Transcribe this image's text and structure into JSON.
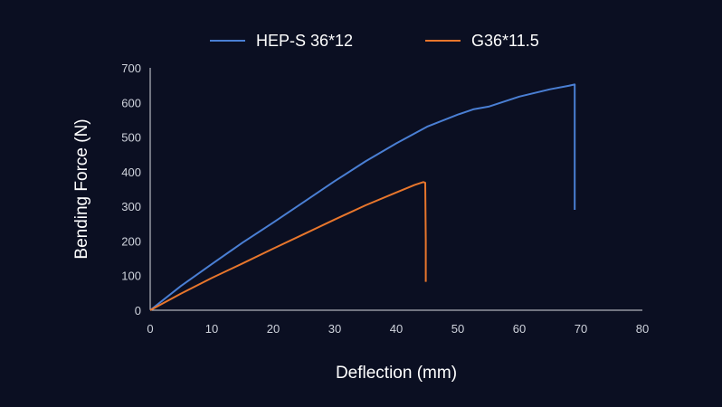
{
  "chart_data": {
    "type": "line",
    "xlabel": "Deflection (mm)",
    "ylabel": "Bending Force (N)",
    "xlim": [
      0,
      80
    ],
    "ylim": [
      0,
      700
    ],
    "xticks": [
      0,
      10,
      20,
      30,
      40,
      50,
      60,
      70,
      80
    ],
    "yticks": [
      0,
      100,
      200,
      300,
      400,
      500,
      600,
      700
    ],
    "grid": false,
    "legend": "top-center",
    "series": [
      {
        "name": "HEP-S 36*12",
        "color": "#4a7fd4",
        "x": [
          0,
          5,
          10,
          15,
          20,
          25,
          30,
          35,
          40,
          45,
          50,
          52.5,
          55,
          60,
          65,
          68,
          69,
          69,
          69
        ],
        "y": [
          0,
          70,
          133,
          195,
          253,
          313,
          373,
          430,
          482,
          530,
          565,
          580,
          588,
          617,
          638,
          648,
          652,
          400,
          290
        ]
      },
      {
        "name": "G36*11.5",
        "color": "#e8762c",
        "x": [
          0,
          5,
          10,
          15,
          20,
          25,
          30,
          35,
          40,
          43,
          44.4,
          44.7,
          44.8,
          44.8
        ],
        "y": [
          0,
          48,
          93,
          135,
          178,
          220,
          262,
          303,
          340,
          362,
          370,
          368,
          200,
          82
        ]
      }
    ]
  }
}
